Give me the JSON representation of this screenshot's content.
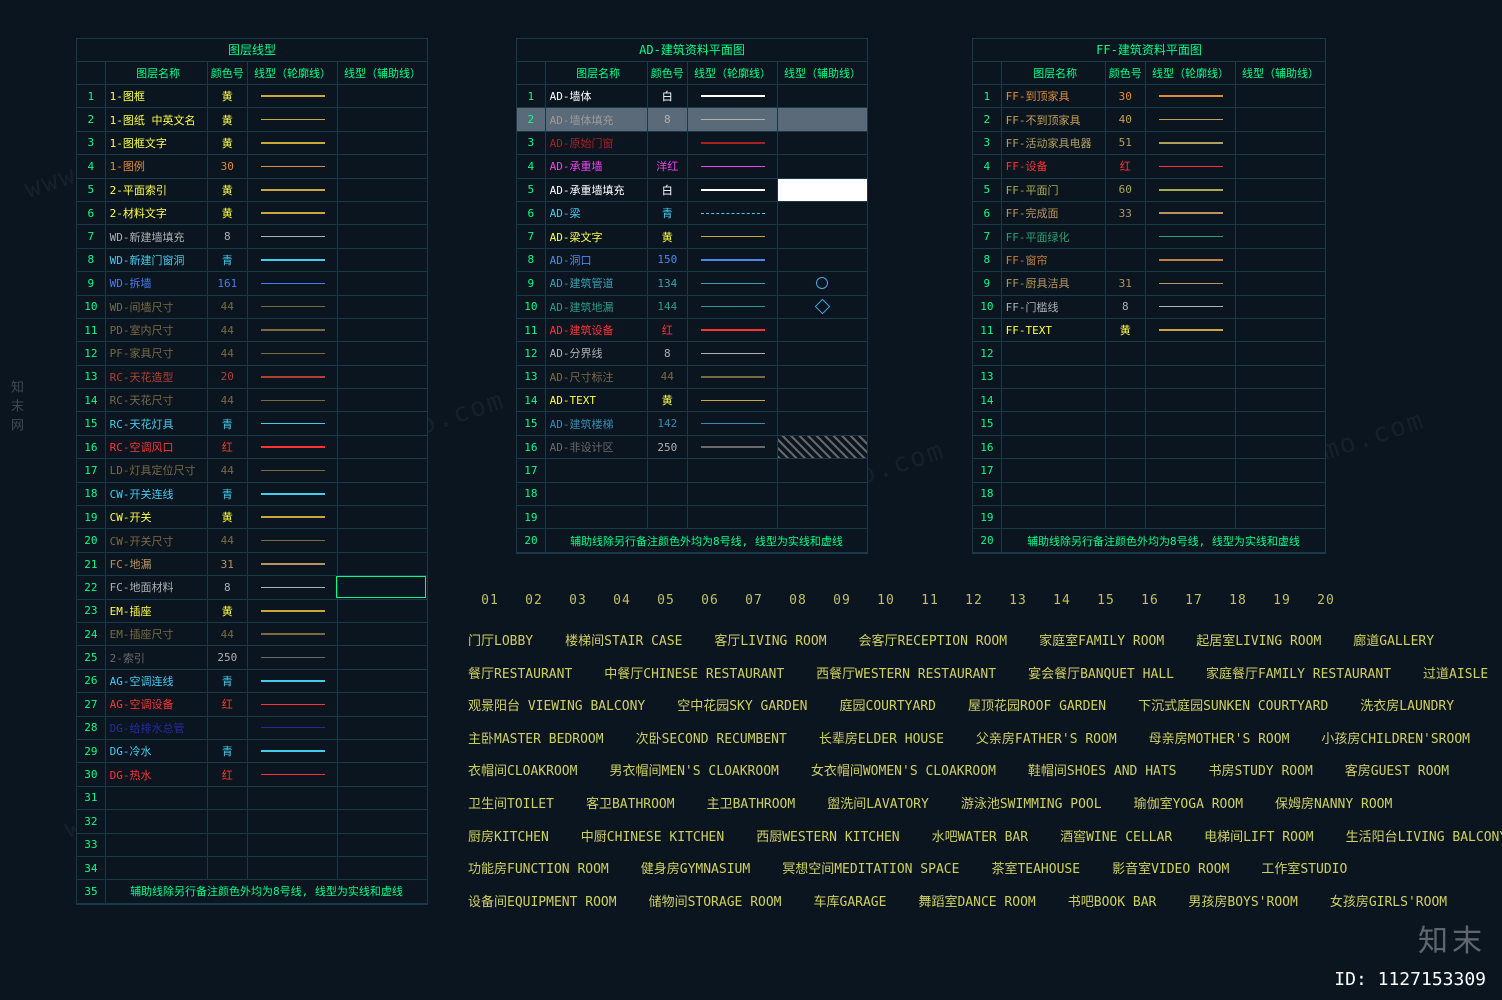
{
  "image_id": "ID: 1127153309",
  "watermark_left": "知末网",
  "watermark_br": "知末",
  "watermark_diag": "www.znzmo.com",
  "headers": {
    "idx": "",
    "name": "图层名称",
    "colno": "颜色号",
    "sw1": "线型（轮廓线）",
    "sw2": "线型（辅助线）"
  },
  "number_strip": [
    "01",
    "02",
    "03",
    "04",
    "05",
    "06",
    "07",
    "08",
    "09",
    "10",
    "11",
    "12",
    "13",
    "14",
    "15",
    "16",
    "17",
    "18",
    "19",
    "20"
  ],
  "panel1": {
    "title": "图层线型",
    "foot": "辅助线除另行备注颜色外均为8号线, 线型为实线和虚线",
    "rows": [
      {
        "i": "1",
        "name": "1-图框",
        "nc": "#ffff44",
        "col": "黄",
        "cc": "#ffff44",
        "lc": "#cca83a"
      },
      {
        "i": "2",
        "name": "1-图纸 中英文名",
        "nc": "#ffff44",
        "col": "黄",
        "cc": "#ffff44",
        "lc": "#cca83a"
      },
      {
        "i": "3",
        "name": "1-图框文字",
        "nc": "#ffff44",
        "col": "黄",
        "cc": "#ffff44",
        "lc": "#cca83a"
      },
      {
        "i": "4",
        "name": "1-图例",
        "nc": "#e08a3a",
        "col": "30",
        "cc": "#e08a3a",
        "lc": "#e08a3a"
      },
      {
        "i": "5",
        "name": "2-平面索引",
        "nc": "#ffff44",
        "col": "黄",
        "cc": "#ffff44",
        "lc": "#cca83a"
      },
      {
        "i": "6",
        "name": "2-材料文字",
        "nc": "#ffff44",
        "col": "黄",
        "cc": "#ffff44",
        "lc": "#cca83a"
      },
      {
        "i": "7",
        "name": "WD-新建墙填充",
        "nc": "#b0b0b0",
        "col": "8",
        "cc": "#b0b0b0",
        "lc": "#b0b0b0"
      },
      {
        "i": "8",
        "name": "WD-新建门窗洞",
        "nc": "#44ccee",
        "col": "青",
        "cc": "#44ccee",
        "lc": "#44ccee"
      },
      {
        "i": "9",
        "name": "WD-拆墙",
        "nc": "#4a7af0",
        "col": "161",
        "cc": "#4a7af0",
        "lc": "#4a7af0"
      },
      {
        "i": "10",
        "name": "WD-间墙尺寸",
        "nc": "#7a6a42",
        "col": "44",
        "cc": "#7a6a42",
        "lc": "#7a6a42"
      },
      {
        "i": "11",
        "name": "PD-室内尺寸",
        "nc": "#7a6a42",
        "col": "44",
        "cc": "#7a6a42",
        "lc": "#7a6a42"
      },
      {
        "i": "12",
        "name": "PF-家具尺寸",
        "nc": "#7a6a42",
        "col": "44",
        "cc": "#7a6a42",
        "lc": "#7a6a42"
      },
      {
        "i": "13",
        "name": "RC-天花造型",
        "nc": "#b04030",
        "col": "20",
        "cc": "#b04030",
        "lc": "#b04030"
      },
      {
        "i": "14",
        "name": "RC-天花尺寸",
        "nc": "#7a6a42",
        "col": "44",
        "cc": "#7a6a42",
        "lc": "#7a6a42"
      },
      {
        "i": "15",
        "name": "RC-天花灯具",
        "nc": "#44ccee",
        "col": "青",
        "cc": "#44ccee",
        "lc": "#44ccee"
      },
      {
        "i": "16",
        "name": "RC-空调风口",
        "nc": "#ff3333",
        "col": "红",
        "cc": "#ff3333",
        "lc": "#ff3333"
      },
      {
        "i": "17",
        "name": "LD-灯具定位尺寸",
        "nc": "#7a6a42",
        "col": "44",
        "cc": "#7a6a42",
        "lc": "#7a6a42"
      },
      {
        "i": "18",
        "name": "CW-开关连线",
        "nc": "#44ccee",
        "col": "青",
        "cc": "#44ccee",
        "lc": "#44ccee"
      },
      {
        "i": "19",
        "name": "CW-开关",
        "nc": "#ffff44",
        "col": "黄",
        "cc": "#ffff44",
        "lc": "#cca83a"
      },
      {
        "i": "20",
        "name": "CW-开关尺寸",
        "nc": "#7a6a42",
        "col": "44",
        "cc": "#7a6a42",
        "lc": "#7a6a42"
      },
      {
        "i": "21",
        "name": "FC-地漏",
        "nc": "#b8945c",
        "col": "31",
        "cc": "#b8945c",
        "lc": "#b8945c"
      },
      {
        "i": "22",
        "name": "FC-地面材料",
        "nc": "#b0b0b0",
        "col": "8",
        "cc": "#b0b0b0",
        "lc": "#b0b0b0",
        "sel": true
      },
      {
        "i": "23",
        "name": "EM-插座",
        "nc": "#ffff44",
        "col": "黄",
        "cc": "#ffff44",
        "lc": "#cca83a"
      },
      {
        "i": "24",
        "name": "EM-插座尺寸",
        "nc": "#7a6a42",
        "col": "44",
        "cc": "#7a6a42",
        "lc": "#7a6a42"
      },
      {
        "i": "25",
        "name": "2-索引",
        "nc": "#6a6a6a",
        "col": "250",
        "cc": "#b0b0b0",
        "lc": "#6a6a6a"
      },
      {
        "i": "26",
        "name": "AG-空调连线",
        "nc": "#44ccee",
        "col": "青",
        "cc": "#44ccee",
        "lc": "#44ccee"
      },
      {
        "i": "27",
        "name": "AG-空调设备",
        "nc": "#ff3333",
        "col": "红",
        "cc": "#ff3333",
        "lc": "#ff3333"
      },
      {
        "i": "28",
        "name": "DG-给排水总管",
        "nc": "#2a2aa0",
        "col": "",
        "cc": "#2a2aa0",
        "lc": "#2a2aa0"
      },
      {
        "i": "29",
        "name": "DG-冷水",
        "nc": "#44ccee",
        "col": "青",
        "cc": "#44ccee",
        "lc": "#44ccee"
      },
      {
        "i": "30",
        "name": "DG-热水",
        "nc": "#ff3333",
        "col": "红",
        "cc": "#ff3333",
        "lc": "#ff3333"
      },
      {
        "i": "31"
      },
      {
        "i": "32"
      },
      {
        "i": "33"
      },
      {
        "i": "34"
      }
    ]
  },
  "panel2": {
    "title": "AD-建筑资料平面图",
    "foot": "辅助线除另行备注颜色外均为8号线, 线型为实线和虚线",
    "rows": [
      {
        "i": "1",
        "name": "AD-墙体",
        "nc": "#ffffff",
        "col": "白",
        "cc": "#ffffff",
        "lc": "#ffffff"
      },
      {
        "i": "2",
        "name": "AD-墙体填充",
        "nc": "#9a9a9a",
        "col": "8",
        "cc": "#b0b0b0",
        "lc": "#b0b0b0",
        "hl": true
      },
      {
        "i": "3",
        "name": "AD-原始门窗",
        "nc": "#aa2020",
        "col": "",
        "cc": "#aa2020",
        "lc": "#aa2020"
      },
      {
        "i": "4",
        "name": "AD-承重墙",
        "nc": "#ee44ee",
        "col": "洋红",
        "cc": "#ee44ee",
        "lc": "#ee44ee"
      },
      {
        "i": "5",
        "name": "AD-承重墙填充",
        "nc": "#ffffff",
        "col": "白",
        "cc": "#ffffff",
        "lc": "#ffffff",
        "hl2": true
      },
      {
        "i": "6",
        "name": "AD-梁",
        "nc": "#44ccee",
        "col": "青",
        "cc": "#44ccee",
        "lc": "#44ccee",
        "dash": true
      },
      {
        "i": "7",
        "name": "AD-梁文字",
        "nc": "#ffff44",
        "col": "黄",
        "cc": "#ffff44",
        "lc": "#cca83a"
      },
      {
        "i": "8",
        "name": "AD-洞口",
        "nc": "#4a8af0",
        "col": "150",
        "cc": "#4a8af0",
        "lc": "#4a8af0"
      },
      {
        "i": "9",
        "name": "AD-建筑管道",
        "nc": "#3aa0b0",
        "col": "134",
        "cc": "#3aa0b0",
        "lc": "#3aa0b0",
        "mk": "circ"
      },
      {
        "i": "10",
        "name": "AD-建筑地漏",
        "nc": "#2a9a8a",
        "col": "144",
        "cc": "#2a9a8a",
        "lc": "#2a9a8a",
        "mk": "diam"
      },
      {
        "i": "11",
        "name": "AD-建筑设备",
        "nc": "#ff3333",
        "col": "红",
        "cc": "#ff3333",
        "lc": "#ff3333"
      },
      {
        "i": "12",
        "name": "AD-分界线",
        "nc": "#b0b0b0",
        "col": "8",
        "cc": "#b0b0b0",
        "lc": "#b0b0b0"
      },
      {
        "i": "13",
        "name": "AD-尺寸标注",
        "nc": "#7a6a42",
        "col": "44",
        "cc": "#7a6a42",
        "lc": "#7a6a42"
      },
      {
        "i": "14",
        "name": "AD-TEXT",
        "nc": "#ffff44",
        "col": "黄",
        "cc": "#ffff44",
        "lc": "#cca83a"
      },
      {
        "i": "15",
        "name": "AD-建筑楼梯",
        "nc": "#3a8ab0",
        "col": "142",
        "cc": "#3a8ab0",
        "lc": "#3a8ab0"
      },
      {
        "i": "16",
        "name": "AD-非设计区",
        "nc": "#6a6a6a",
        "col": "250",
        "cc": "#b0b0b0",
        "lc": "#6a6a6a",
        "hatch": true
      },
      {
        "i": "17"
      },
      {
        "i": "18"
      },
      {
        "i": "19"
      }
    ]
  },
  "panel3": {
    "title": "FF-建筑资料平面图",
    "foot": "辅助线除另行备注颜色外均为8号线, 线型为实线和虚线",
    "rows": [
      {
        "i": "1",
        "name": "FF-到顶家具",
        "nc": "#e08a3a",
        "col": "30",
        "cc": "#e08a3a",
        "lc": "#e08a3a"
      },
      {
        "i": "2",
        "name": "FF-不到顶家具",
        "nc": "#c8a050",
        "col": "40",
        "cc": "#c8a050",
        "lc": "#c8a050"
      },
      {
        "i": "3",
        "name": "FF-活动家具电器",
        "nc": "#b0a060",
        "col": "51",
        "cc": "#b0a060",
        "lc": "#b0a060"
      },
      {
        "i": "4",
        "name": "FF-设备",
        "nc": "#ff3333",
        "col": "红",
        "cc": "#ff3333",
        "lc": "#ff3333"
      },
      {
        "i": "5",
        "name": "FF-平面门",
        "nc": "#aaaa50",
        "col": "60",
        "cc": "#aaaa50",
        "lc": "#aaaa50"
      },
      {
        "i": "6",
        "name": "FF-完成面",
        "nc": "#b8945c",
        "col": "33",
        "cc": "#b8945c",
        "lc": "#b8945c"
      },
      {
        "i": "7",
        "name": "FF-平面绿化",
        "nc": "#2aa070",
        "col": "",
        "cc": "#2aa070",
        "lc": "#2aa070"
      },
      {
        "i": "8",
        "name": "FF-窗帘",
        "nc": "#c08040",
        "col": "",
        "cc": "#c08040",
        "lc": "#c08040"
      },
      {
        "i": "9",
        "name": "FF-厨具洁具",
        "nc": "#b8945c",
        "col": "31",
        "cc": "#b8945c",
        "lc": "#b8945c"
      },
      {
        "i": "10",
        "name": "FF-门槛线",
        "nc": "#b0b0b0",
        "col": "8",
        "cc": "#b0b0b0",
        "lc": "#b0b0b0"
      },
      {
        "i": "11",
        "name": "FF-TEXT",
        "nc": "#ffff44",
        "col": "黄",
        "cc": "#ffff44",
        "lc": "#cca83a"
      },
      {
        "i": "12"
      },
      {
        "i": "13"
      },
      {
        "i": "14"
      },
      {
        "i": "15"
      },
      {
        "i": "16"
      },
      {
        "i": "17"
      },
      {
        "i": "18"
      },
      {
        "i": "19"
      }
    ]
  },
  "rooms": [
    [
      "门厅LOBBY",
      "楼梯间STAIR CASE",
      "客厅LIVING ROOM",
      "会客厅RECEPTION ROOM",
      "家庭室FAMILY ROOM",
      "起居室LIVING ROOM",
      "廊道GALLERY"
    ],
    [
      "餐厅RESTAURANT",
      "中餐厅CHINESE RESTAURANT",
      "西餐厅WESTERN RESTAURANT",
      "宴会餐厅BANQUET HALL",
      "家庭餐厅FAMILY RESTAURANT",
      "过道AISLE"
    ],
    [
      "观景阳台 VIEWING BALCONY",
      "空中花园SKY GARDEN",
      "庭园COURTYARD",
      "屋顶花园ROOF GARDEN",
      "下沉式庭园SUNKEN COURTYARD",
      "洗衣房LAUNDRY"
    ],
    [
      "主卧MASTER BEDROOM",
      "次卧SECOND RECUMBENT",
      "长辈房ELDER HOUSE",
      "父亲房FATHER'S ROOM",
      "母亲房MOTHER'S ROOM",
      "小孩房CHILDREN'SROOM"
    ],
    [
      "衣帽间CLOAKROOM",
      "男衣帽间MEN'S CLOAKROOM",
      "女衣帽间WOMEN'S CLOAKROOM",
      "鞋帽间SHOES AND HATS",
      "书房STUDY ROOM",
      "客房GUEST ROOM"
    ],
    [
      "卫生间TOILET",
      "客卫BATHROOM",
      "主卫BATHROOM",
      "盥洗间LAVATORY",
      "游泳池SWIMMING POOL",
      "瑜伽室YOGA ROOM",
      "保姆房NANNY ROOM"
    ],
    [
      "厨房KITCHEN",
      "中厨CHINESE KITCHEN",
      "西厨WESTERN KITCHEN",
      "水吧WATER BAR",
      "酒窖WINE CELLAR",
      "电梯间LIFT ROOM",
      "生活阳台LIVING BALCONY"
    ],
    [
      "功能房FUNCTION ROOM",
      "健身房GYMNASIUM",
      "冥想空间MEDITATION SPACE",
      "茶室TEAHOUSE",
      "影音室VIDEO ROOM",
      "工作室STUDIO"
    ],
    [
      "设备间EQUIPMENT ROOM",
      "储物间STORAGE ROOM",
      "车库GARAGE",
      "舞蹈室DANCE ROOM",
      "书吧BOOK BAR",
      "男孩房BOYS'ROOM",
      "女孩房GIRLS'ROOM"
    ]
  ]
}
